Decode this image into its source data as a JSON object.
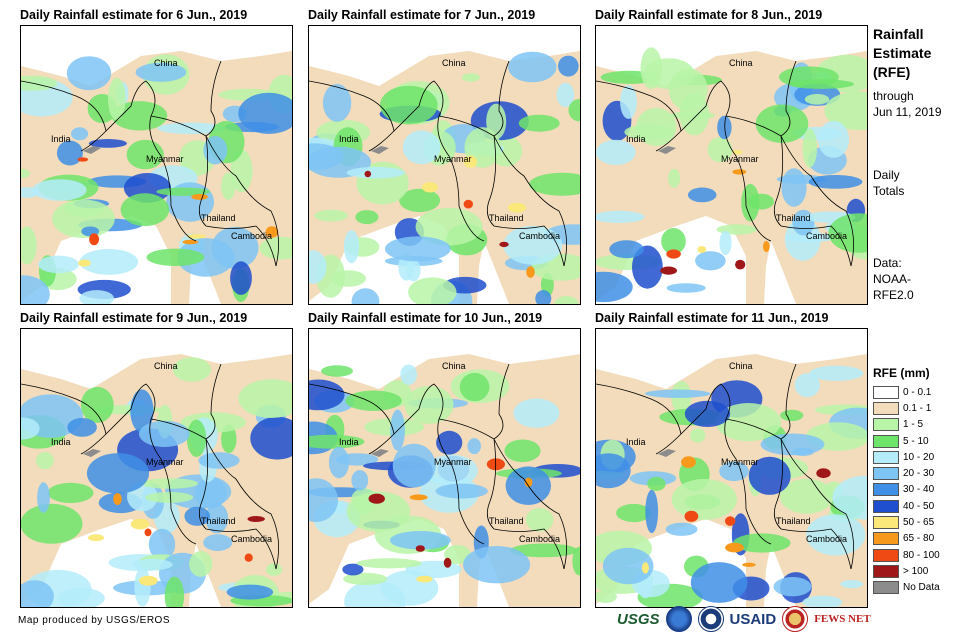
{
  "panels": [
    {
      "title": "Daily Rainfall estimate for 6 Jun., 2019"
    },
    {
      "title": "Daily Rainfall estimate for 7 Jun., 2019"
    },
    {
      "title": "Daily Rainfall estimate for 8 Jun., 2019"
    },
    {
      "title": "Daily Rainfall estimate for 9 Jun., 2019"
    },
    {
      "title": "Daily Rainfall estimate for 10 Jun., 2019"
    },
    {
      "title": "Daily Rainfall estimate for 11 Jun., 2019"
    }
  ],
  "map_labels": {
    "china": "China",
    "india": "India",
    "myanmar": "Myanmar",
    "thailand": "Thailand",
    "cambodia": "Cambodia"
  },
  "sidebar": {
    "title_line1": "Rainfall",
    "title_line2": "Estimate",
    "title_line3": "(RFE)",
    "through_line1": "through",
    "through_line2": "Jun 11, 2019",
    "daily_line1": "Daily",
    "daily_line2": "Totals",
    "data_line1": "Data:",
    "data_line2": "NOAA-",
    "data_line3": "RFE2.0"
  },
  "legend": {
    "title": "RFE (mm)",
    "items": [
      {
        "label": "0 - 0.1",
        "color": "#ffffff"
      },
      {
        "label": "0.1 - 1",
        "color": "#f2dcbb"
      },
      {
        "label": "1 - 5",
        "color": "#b9f5a8"
      },
      {
        "label": "5 - 10",
        "color": "#6ee46a"
      },
      {
        "label": "10 - 20",
        "color": "#b4ecfa"
      },
      {
        "label": "20 - 30",
        "color": "#7ec4f4"
      },
      {
        "label": "30 - 40",
        "color": "#3f8fe6"
      },
      {
        "label": "40 - 50",
        "color": "#1f4fcf"
      },
      {
        "label": "50 - 65",
        "color": "#fbe87a"
      },
      {
        "label": "65 - 80",
        "color": "#f79a1c"
      },
      {
        "label": "80 - 100",
        "color": "#f04a14"
      },
      {
        "label": "> 100",
        "color": "#a0171a"
      },
      {
        "label": "No Data",
        "color": "#8c8c8c"
      }
    ]
  },
  "credit": "Map produced by USGS/EROS",
  "logos": {
    "usgs": "USGS",
    "usaid": "USAID",
    "fews": "FEWS NET"
  }
}
